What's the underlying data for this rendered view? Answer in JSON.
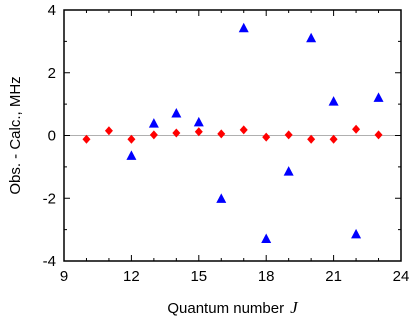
{
  "chart_data": {
    "type": "scatter",
    "title": "",
    "xlabel": "Quantum number",
    "xlabel_symbol": "J",
    "ylabel": "Obs. - Calc.,  MHz",
    "xlim": [
      9,
      24
    ],
    "ylim": [
      -4,
      4
    ],
    "xticks": [
      9,
      12,
      15,
      18,
      21,
      24
    ],
    "yticks": [
      -4,
      -2,
      0,
      2,
      4
    ],
    "xtick_labels": [
      "9",
      "12",
      "15",
      "18",
      "21",
      "24"
    ],
    "ytick_labels": [
      "-4",
      "-2",
      "0",
      "2",
      "4"
    ],
    "zero_line": true,
    "grid": false,
    "series": [
      {
        "marker": "triangle",
        "color": "#0000ff",
        "x": [
          12,
          13,
          14,
          15,
          16,
          17,
          18,
          19,
          20,
          21,
          22,
          23
        ],
        "y": [
          -0.65,
          0.38,
          0.7,
          0.42,
          -2.02,
          3.42,
          -3.3,
          -1.15,
          3.1,
          1.08,
          -3.15,
          1.2
        ]
      },
      {
        "marker": "diamond",
        "color": "#ff0000",
        "x": [
          10,
          11,
          12,
          13,
          14,
          15,
          16,
          17,
          18,
          19,
          20,
          21,
          22,
          23
        ],
        "y": [
          -0.12,
          0.15,
          -0.12,
          0.02,
          0.08,
          0.12,
          0.05,
          0.18,
          -0.05,
          0.02,
          -0.12,
          -0.12,
          0.2,
          0.02
        ]
      }
    ]
  }
}
